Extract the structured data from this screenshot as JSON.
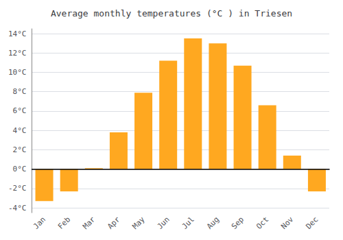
{
  "chart_data": {
    "type": "bar",
    "title": "Average monthly temperatures (°C ) in Triesen",
    "categories": [
      "Jan",
      "Feb",
      "Mar",
      "Apr",
      "May",
      "Jun",
      "Jul",
      "Aug",
      "Sep",
      "Oct",
      "Nov",
      "Dec"
    ],
    "values": [
      -3.3,
      -2.3,
      0.1,
      3.8,
      7.9,
      11.2,
      13.5,
      13.0,
      10.7,
      6.6,
      1.4,
      -2.3
    ],
    "color": "#FFA820",
    "ylim": [
      -4.5,
      14.5
    ],
    "yticks": [
      {
        "value": -4,
        "label": "-4°C"
      },
      {
        "value": -2,
        "label": "-2°C"
      },
      {
        "value": 0,
        "label": "0°C"
      },
      {
        "value": 2,
        "label": "2°C"
      },
      {
        "value": 4,
        "label": "4°C"
      },
      {
        "value": 6,
        "label": "6°C"
      },
      {
        "value": 8,
        "label": "8°C"
      },
      {
        "value": 10,
        "label": "10°C"
      },
      {
        "value": 12,
        "label": "12°C"
      },
      {
        "value": 14,
        "label": "14°C"
      }
    ],
    "grid": true
  }
}
